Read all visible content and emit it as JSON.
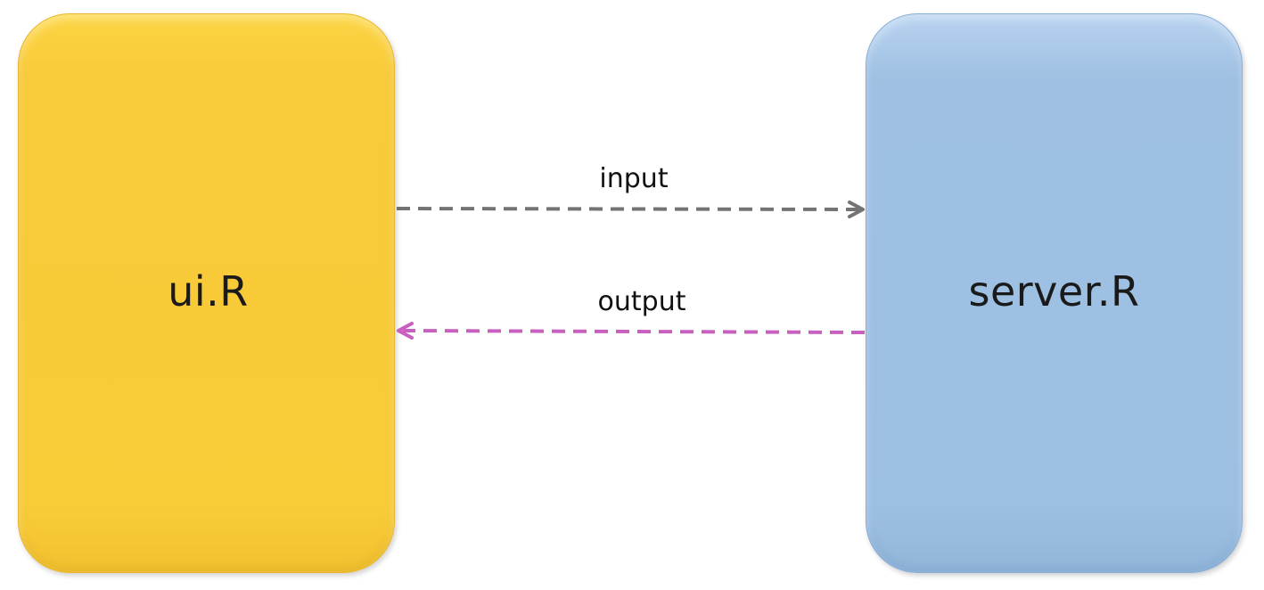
{
  "nodes": {
    "ui": {
      "label": "ui.R",
      "color": "#f9ca3a"
    },
    "server": {
      "label": "server.R",
      "color": "#9cbfe2"
    }
  },
  "edges": {
    "input": {
      "label": "input",
      "from": "ui.R",
      "to": "server.R",
      "style": "dashed",
      "color": "#737373"
    },
    "output": {
      "label": "output",
      "from": "server.R",
      "to": "ui.R",
      "style": "dashed",
      "color": "#c95fbf"
    }
  }
}
